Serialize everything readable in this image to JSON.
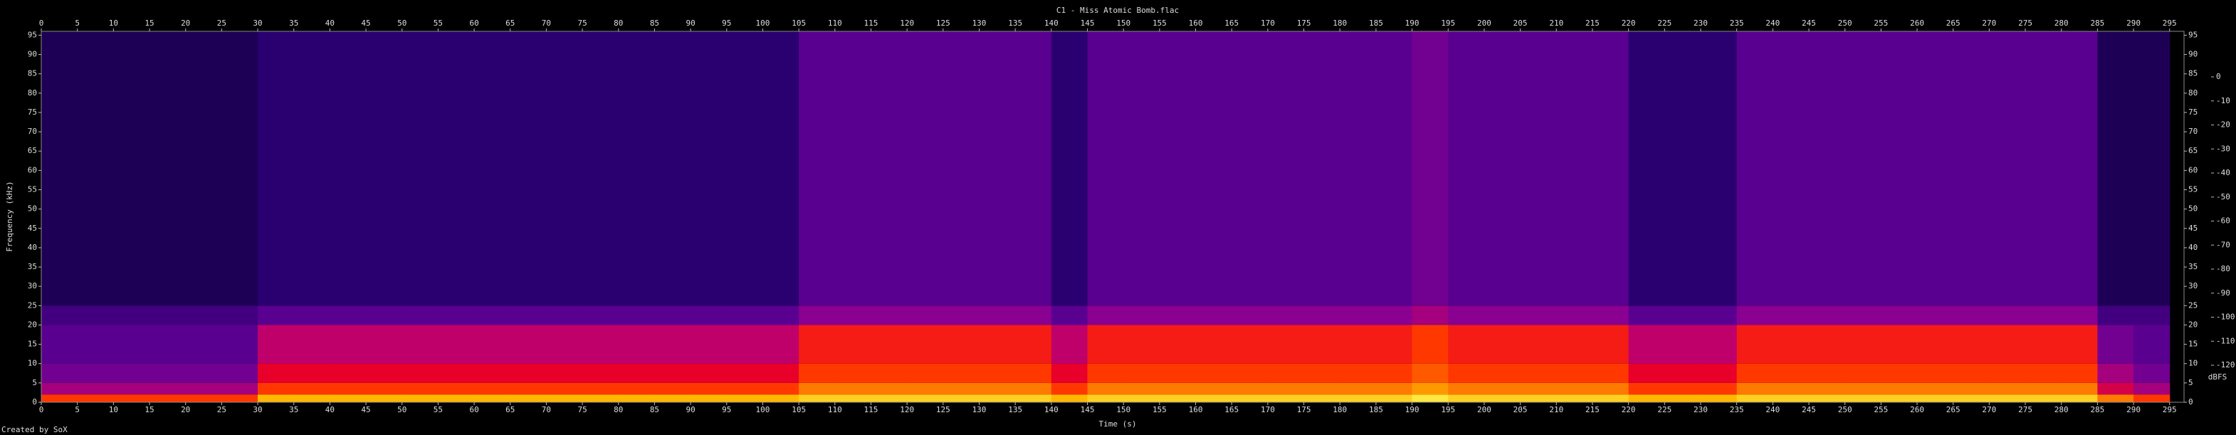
{
  "chart_data": {
    "type": "heatmap",
    "title": "C1 - Miss Atomic Bomb.flac",
    "x_label": "Time (s)",
    "y_label": "Frequency (kHz)",
    "z_label": "dBFS",
    "footer": "Created by SoX",
    "xlim": [
      0,
      297
    ],
    "ylim": [
      0,
      96
    ],
    "xticks": [
      0,
      5,
      10,
      15,
      20,
      25,
      30,
      35,
      40,
      45,
      50,
      55,
      60,
      65,
      70,
      75,
      80,
      85,
      90,
      95,
      100,
      105,
      110,
      115,
      120,
      125,
      130,
      135,
      140,
      145,
      150,
      155,
      160,
      165,
      170,
      175,
      180,
      185,
      190,
      195,
      200,
      205,
      210,
      215,
      220,
      225,
      230,
      235,
      240,
      245,
      250,
      255,
      260,
      265,
      270,
      275,
      280,
      285,
      290,
      295
    ],
    "yticks": [
      0,
      5,
      10,
      15,
      20,
      25,
      30,
      35,
      40,
      45,
      50,
      55,
      60,
      65,
      70,
      75,
      80,
      85,
      90,
      95
    ],
    "zlim": [
      -120,
      0
    ],
    "zticks": [
      0,
      -10,
      -20,
      -30,
      -40,
      -50,
      -60,
      -70,
      -80,
      -90,
      -100,
      -110,
      -120
    ],
    "colormap": [
      "#000000",
      "#10003a",
      "#2a0070",
      "#5a0090",
      "#8a0090",
      "#c0006a",
      "#e8002a",
      "#ff3800",
      "#ff7a00",
      "#ffb800",
      "#ffe840",
      "#ffffc0",
      "#ffffff"
    ],
    "x_bins": [
      0,
      5,
      10,
      15,
      20,
      25,
      30,
      35,
      40,
      45,
      50,
      55,
      60,
      65,
      70,
      75,
      80,
      85,
      90,
      95,
      100,
      105,
      110,
      115,
      120,
      125,
      130,
      135,
      140,
      145,
      150,
      155,
      160,
      165,
      170,
      175,
      180,
      185,
      190,
      195,
      200,
      205,
      210,
      215,
      220,
      225,
      230,
      235,
      240,
      245,
      250,
      255,
      260,
      265,
      270,
      275,
      280,
      285,
      290,
      295
    ],
    "y_bins": [
      0,
      2,
      5,
      10,
      20,
      25,
      96
    ],
    "z": [
      [
        -50,
        -50,
        -50,
        -50,
        -50,
        -50,
        -30,
        -30,
        -30,
        -30,
        -30,
        -30,
        -30,
        -30,
        -30,
        -30,
        -30,
        -30,
        -30,
        -30,
        -30,
        -25,
        -25,
        -25,
        -25,
        -25,
        -25,
        -25,
        -30,
        -25,
        -25,
        -25,
        -25,
        -25,
        -25,
        -25,
        -25,
        -25,
        -20,
        -25,
        -25,
        -25,
        -25,
        -25,
        -30,
        -30,
        -30,
        -25,
        -25,
        -25,
        -25,
        -25,
        -25,
        -25,
        -25,
        -25,
        -25,
        -40,
        -50
      ],
      [
        -75,
        -75,
        -75,
        -75,
        -75,
        -75,
        -50,
        -50,
        -50,
        -50,
        -50,
        -50,
        -50,
        -50,
        -50,
        -50,
        -50,
        -50,
        -50,
        -50,
        -50,
        -40,
        -40,
        -40,
        -40,
        -40,
        -40,
        -40,
        -50,
        -40,
        -40,
        -40,
        -40,
        -40,
        -40,
        -40,
        -40,
        -40,
        -35,
        -40,
        -40,
        -40,
        -40,
        -40,
        -50,
        -50,
        -50,
        -40,
        -40,
        -40,
        -40,
        -40,
        -40,
        -40,
        -40,
        -40,
        -40,
        -65,
        -75
      ],
      [
        -85,
        -85,
        -85,
        -85,
        -85,
        -85,
        -60,
        -60,
        -60,
        -60,
        -60,
        -60,
        -60,
        -60,
        -60,
        -60,
        -60,
        -60,
        -60,
        -60,
        -60,
        -50,
        -50,
        -50,
        -50,
        -50,
        -50,
        -50,
        -60,
        -50,
        -50,
        -50,
        -50,
        -50,
        -50,
        -50,
        -50,
        -50,
        -45,
        -50,
        -50,
        -50,
        -50,
        -50,
        -60,
        -60,
        -60,
        -50,
        -50,
        -50,
        -50,
        -50,
        -50,
        -50,
        -50,
        -50,
        -50,
        -75,
        -85
      ],
      [
        -90,
        -90,
        -90,
        -90,
        -90,
        -90,
        -70,
        -70,
        -70,
        -70,
        -70,
        -70,
        -70,
        -70,
        -70,
        -70,
        -70,
        -70,
        -70,
        -70,
        -70,
        -55,
        -55,
        -55,
        -55,
        -55,
        -55,
        -55,
        -70,
        -55,
        -55,
        -55,
        -55,
        -55,
        -55,
        -55,
        -55,
        -55,
        -50,
        -55,
        -55,
        -55,
        -55,
        -55,
        -70,
        -70,
        -70,
        -55,
        -55,
        -55,
        -55,
        -55,
        -55,
        -55,
        -55,
        -55,
        -55,
        -85,
        -90
      ],
      [
        -95,
        -95,
        -95,
        -95,
        -95,
        -95,
        -90,
        -90,
        -90,
        -90,
        -90,
        -90,
        -90,
        -90,
        -90,
        -90,
        -90,
        -90,
        -90,
        -90,
        -90,
        -80,
        -80,
        -80,
        -80,
        -80,
        -80,
        -80,
        -90,
        -80,
        -80,
        -80,
        -80,
        -80,
        -80,
        -80,
        -80,
        -80,
        -75,
        -80,
        -80,
        -80,
        -80,
        -80,
        -90,
        -90,
        -90,
        -80,
        -80,
        -80,
        -80,
        -80,
        -80,
        -80,
        -80,
        -80,
        -80,
        -95,
        -95
      ],
      [
        -105,
        -105,
        -105,
        -105,
        -105,
        -105,
        -100,
        -100,
        -100,
        -100,
        -100,
        -100,
        -100,
        -100,
        -100,
        -100,
        -100,
        -100,
        -100,
        -100,
        -100,
        -90,
        -90,
        -90,
        -90,
        -90,
        -90,
        -90,
        -100,
        -90,
        -90,
        -90,
        -90,
        -90,
        -90,
        -90,
        -90,
        -90,
        -85,
        -90,
        -90,
        -90,
        -90,
        -90,
        -100,
        -100,
        -100,
        -90,
        -90,
        -90,
        -90,
        -90,
        -90,
        -90,
        -90,
        -90,
        -90,
        -105,
        -105
      ]
    ]
  }
}
